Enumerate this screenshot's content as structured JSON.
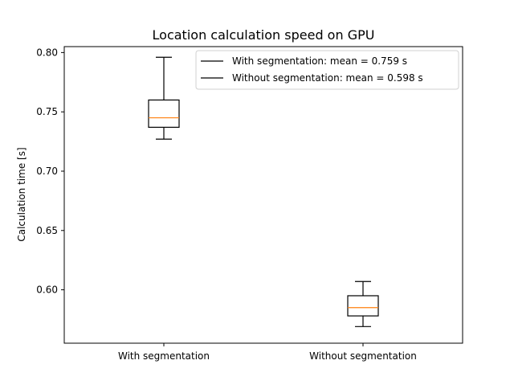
{
  "chart_data": {
    "type": "box",
    "title": "Location calculation speed on GPU",
    "xlabel": "",
    "ylabel": "Calculation time [s]",
    "ylim": [
      0.555,
      0.805
    ],
    "y_ticks": [
      "0.60",
      "0.65",
      "0.70",
      "0.75",
      "0.80"
    ],
    "grid": false,
    "legend_position": "top-right",
    "categories": [
      "With segmentation",
      "Without segmentation"
    ],
    "boxes": [
      {
        "category": "With segmentation",
        "whisker_low": 0.727,
        "q1": 0.737,
        "median": 0.745,
        "q3": 0.76,
        "whisker_high": 0.796
      },
      {
        "category": "Without segmentation",
        "whisker_low": 0.569,
        "q1": 0.578,
        "median": 0.585,
        "q3": 0.595,
        "whisker_high": 0.607
      }
    ],
    "legend": [
      "With segmentation: mean = 0.759 s",
      "Without segmentation: mean = 0.598 s"
    ],
    "colors": {
      "box": "#000000",
      "median": "#ff7f0e",
      "legend_line": "#000000"
    }
  }
}
